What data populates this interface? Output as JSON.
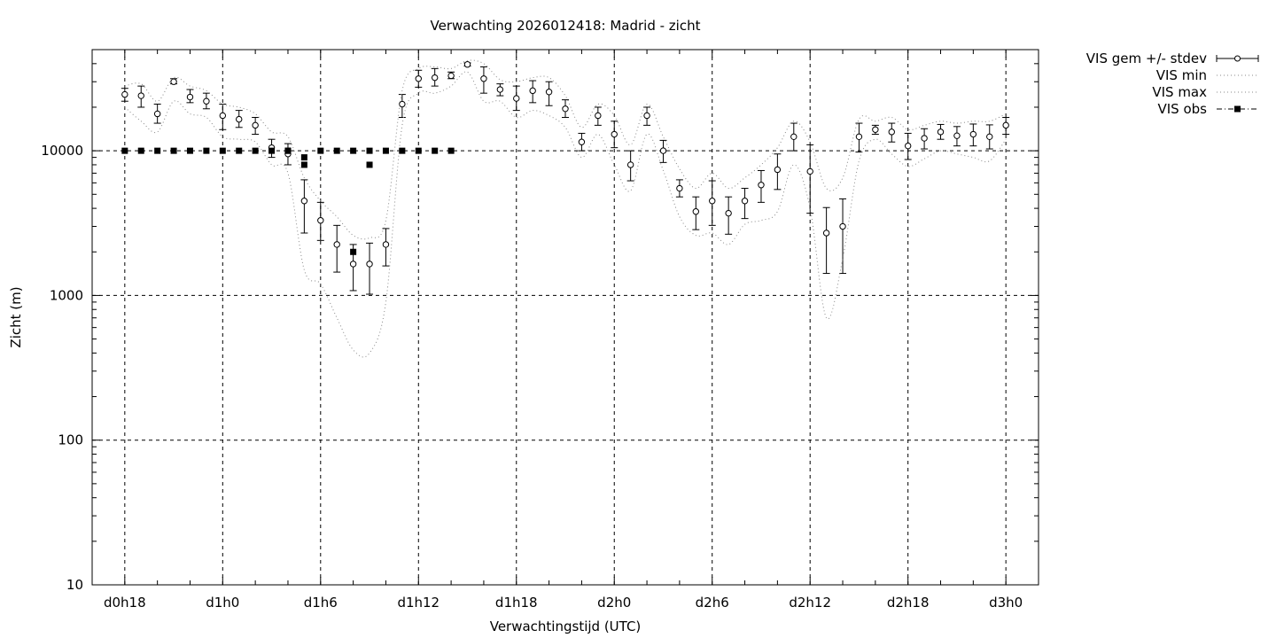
{
  "chart_data": {
    "type": "line",
    "title": "Verwachting 2026012418: Madrid - zicht",
    "xlabel": "Verwachtingstijd (UTC)",
    "ylabel": "Zicht (m)",
    "yscale": "log",
    "ylim": [
      10,
      50000
    ],
    "xlim": [
      -2,
      56
    ],
    "grid": true,
    "legend_position": "outside-top-right",
    "x_ticks": [
      {
        "x": 0,
        "label": "d0h18"
      },
      {
        "x": 6,
        "label": "d1h0"
      },
      {
        "x": 12,
        "label": "d1h6"
      },
      {
        "x": 18,
        "label": "d1h12"
      },
      {
        "x": 24,
        "label": "d1h18"
      },
      {
        "x": 30,
        "label": "d2h0"
      },
      {
        "x": 36,
        "label": "d2h6"
      },
      {
        "x": 42,
        "label": "d2h12"
      },
      {
        "x": 48,
        "label": "d2h18"
      },
      {
        "x": 54,
        "label": "d3h0"
      }
    ],
    "y_ticks": [
      {
        "y": 10,
        "label": "10"
      },
      {
        "y": 100,
        "label": "100"
      },
      {
        "y": 1000,
        "label": "1000"
      },
      {
        "y": 10000,
        "label": "10000"
      }
    ],
    "series": [
      {
        "name": "VIS gem +/- stdev",
        "style": "errorbar-open-circle",
        "x": [
          0,
          1,
          2,
          3,
          4,
          5,
          6,
          7,
          8,
          9,
          10,
          11,
          12,
          13,
          14,
          15,
          16,
          17,
          18,
          19,
          20,
          21,
          22,
          23,
          24,
          25,
          26,
          27,
          28,
          29,
          30,
          31,
          32,
          33,
          34,
          35,
          36,
          37,
          38,
          39,
          40,
          41,
          42,
          43,
          44,
          45,
          46,
          47,
          48,
          49,
          50,
          51,
          52,
          53,
          54
        ],
        "y": [
          24500,
          24000,
          18000,
          30000,
          23500,
          22000,
          17500,
          16500,
          15000,
          10500,
          9500,
          4500,
          3300,
          2250,
          1650,
          1650,
          2250,
          21000,
          31500,
          32000,
          33000,
          39500,
          31500,
          26500,
          23000,
          26000,
          25500,
          19500,
          11500,
          17500,
          13000,
          8000,
          17500,
          10000,
          5500,
          3800,
          4500,
          3700,
          4500,
          5800,
          7400,
          12500,
          7200,
          2700,
          3000,
          12500,
          14000,
          13500,
          10800,
          12200,
          13500,
          12700,
          13000,
          12500,
          15000
        ],
        "y_low": [
          22000,
          20000,
          15500,
          29000,
          21500,
          19500,
          14000,
          14500,
          13000,
          9000,
          8000,
          2700,
          2400,
          1450,
          1080,
          1020,
          1600,
          17000,
          27500,
          28000,
          31500,
          38500,
          25000,
          24000,
          19000,
          21500,
          20500,
          17000,
          10000,
          15000,
          10500,
          6200,
          15000,
          8300,
          4800,
          2850,
          3050,
          2650,
          3400,
          4400,
          5400,
          10000,
          3700,
          1420,
          1420,
          9800,
          13000,
          11500,
          8700,
          10300,
          12000,
          10800,
          10800,
          10300,
          13000
        ],
        "y_high": [
          27000,
          28000,
          21000,
          31500,
          26500,
          25000,
          21000,
          19000,
          17000,
          12000,
          11200,
          6300,
          4400,
          3050,
          2250,
          2300,
          2900,
          24500,
          36000,
          37000,
          35000,
          40500,
          38000,
          29000,
          28000,
          30500,
          30000,
          22500,
          13200,
          20000,
          16000,
          10000,
          20000,
          11800,
          6300,
          4800,
          6200,
          4800,
          5500,
          7300,
          9500,
          15500,
          11000,
          4050,
          4650,
          15500,
          15000,
          15500,
          13200,
          14200,
          15200,
          14700,
          15300,
          15100,
          17000
        ]
      },
      {
        "name": "VIS min",
        "style": "dotted",
        "x": [
          0,
          1,
          2,
          3,
          4,
          5,
          6,
          7,
          8,
          9,
          10,
          11,
          12,
          13,
          14,
          15,
          16,
          17,
          18,
          19,
          20,
          21,
          22,
          23,
          24,
          25,
          26,
          27,
          28,
          29,
          30,
          31,
          32,
          33,
          34,
          35,
          36,
          37,
          38,
          39,
          40,
          41,
          42,
          43,
          44,
          45,
          46,
          47,
          48,
          49,
          50,
          51,
          52,
          53,
          54
        ],
        "y": [
          20000,
          16000,
          13500,
          22000,
          18000,
          17000,
          12500,
          12000,
          11500,
          8000,
          7000,
          1500,
          1200,
          700,
          420,
          400,
          900,
          15000,
          25000,
          25000,
          28000,
          35000,
          22000,
          22000,
          17000,
          19000,
          17500,
          14500,
          9000,
          13000,
          8000,
          5300,
          13000,
          7300,
          3500,
          2600,
          2700,
          2250,
          3100,
          3300,
          3800,
          8000,
          4000,
          700,
          1800,
          8500,
          12000,
          9500,
          7800,
          8800,
          10000,
          9500,
          9000,
          8500,
          12000
        ]
      },
      {
        "name": "VIS max",
        "style": "dotted",
        "x": [
          0,
          1,
          2,
          3,
          4,
          5,
          6,
          7,
          8,
          9,
          10,
          11,
          12,
          13,
          14,
          15,
          16,
          17,
          18,
          19,
          20,
          21,
          22,
          23,
          24,
          25,
          26,
          27,
          28,
          29,
          30,
          31,
          32,
          33,
          34,
          35,
          36,
          37,
          38,
          39,
          40,
          41,
          42,
          43,
          44,
          45,
          46,
          47,
          48,
          49,
          50,
          51,
          52,
          53,
          54
        ],
        "y": [
          28000,
          29000,
          22000,
          32000,
          28000,
          26000,
          21000,
          20000,
          18000,
          13500,
          12500,
          6500,
          4500,
          3500,
          2600,
          2500,
          3300,
          26000,
          37000,
          38000,
          37000,
          42000,
          40000,
          31000,
          30000,
          32000,
          32000,
          24000,
          14500,
          21000,
          17500,
          11000,
          21000,
          12500,
          7500,
          5500,
          7000,
          5500,
          6500,
          8000,
          10500,
          16000,
          11500,
          5500,
          6500,
          16500,
          16000,
          17000,
          14000,
          15000,
          16000,
          15500,
          16000,
          16000,
          18000
        ]
      },
      {
        "name": "VIS obs",
        "style": "dashdot-filled-square",
        "x": [
          0,
          1,
          2,
          3,
          4,
          5,
          6,
          7,
          8,
          9,
          10,
          10,
          11,
          11,
          12,
          13,
          14,
          14,
          15,
          15,
          16,
          17,
          18,
          19,
          20
        ],
        "y": [
          10000,
          10000,
          10000,
          10000,
          10000,
          10000,
          10000,
          10000,
          10000,
          10000,
          10000,
          10000,
          9000,
          8000,
          10000,
          10000,
          10000,
          2000,
          10000,
          8000,
          10000,
          10000,
          10000,
          10000,
          10000
        ]
      }
    ]
  }
}
